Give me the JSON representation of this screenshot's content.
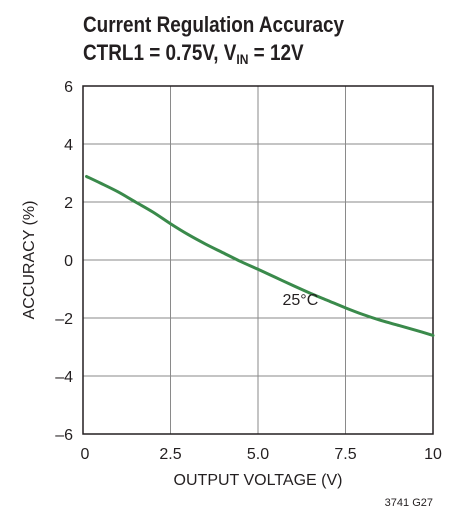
{
  "title_line1": "Current Regulation Accuracy",
  "title_line2_prefix": "CTRL1 = 0.75V, V",
  "title_line2_sub": "IN",
  "title_line2_suffix": " = 12V",
  "figure_id": "3741 G27",
  "chart_data": {
    "type": "line",
    "title": "Current Regulation Accuracy CTRL1 = 0.75V, VIN = 12V",
    "xlabel": "OUTPUT VOLTAGE (V)",
    "ylabel": "ACCURACY (%)",
    "xlim": [
      0,
      10
    ],
    "ylim": [
      -6,
      6
    ],
    "x_ticks": [
      0,
      2.5,
      5.0,
      7.5,
      10
    ],
    "x_tick_labels": [
      "0",
      "2.5",
      "5.0",
      "7.5",
      "10"
    ],
    "y_ticks": [
      -6,
      -4,
      -2,
      0,
      2,
      4,
      6
    ],
    "y_tick_labels": [
      "–6",
      "–4",
      "–2",
      "0",
      "2",
      "4",
      "6"
    ],
    "grid": true,
    "line_color": "#3a8a4b",
    "series": [
      {
        "name": "25°C",
        "x": [
          0.1,
          0.5,
          1.0,
          1.5,
          2.0,
          2.5,
          3.0,
          3.5,
          4.0,
          4.5,
          5.0,
          5.5,
          6.0,
          6.5,
          7.0,
          7.5,
          8.0,
          8.5,
          9.0,
          9.5,
          10.0
        ],
        "y": [
          2.88,
          2.65,
          2.35,
          2.0,
          1.65,
          1.25,
          0.88,
          0.55,
          0.25,
          -0.05,
          -0.32,
          -0.6,
          -0.88,
          -1.15,
          -1.4,
          -1.65,
          -1.88,
          -2.08,
          -2.25,
          -2.42,
          -2.6
        ]
      }
    ],
    "annotations": [
      {
        "text": "25°C",
        "x": 5.7,
        "y": -1.55
      }
    ]
  }
}
